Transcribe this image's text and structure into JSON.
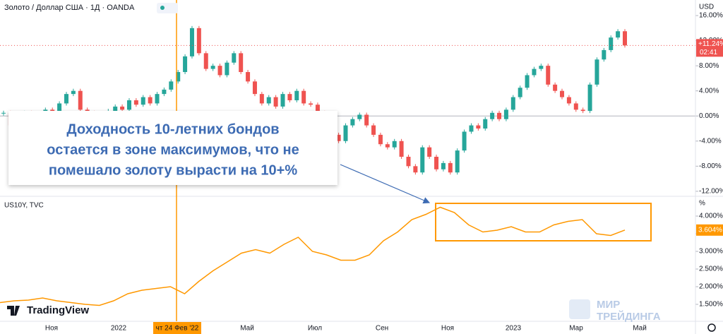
{
  "header": {
    "symbol": "Золото / Доллар США · 1Д · OANDA"
  },
  "annotation": {
    "lines": [
      "Доходность 10-летних бондов",
      "остается в зоне максимумов, что не",
      "помешало золоту вырасти на 10+%"
    ]
  },
  "chart_data": [
    {
      "type": "candlestick",
      "currency": "USD",
      "up_color": "#26a69a",
      "down_color": "#ef5350",
      "values": [
        0.5,
        -1.5,
        -0.5,
        0.5,
        -0.8,
        0.3,
        1.0,
        0.2,
        2.0,
        3.5,
        4.0,
        1.0,
        0.5,
        -0.2,
        0.3,
        0.8,
        1.5,
        1.0,
        2.5,
        1.8,
        3.0,
        2.0,
        3.5,
        4.2,
        5.5,
        7.0,
        9.5,
        14.0,
        10.0,
        7.5,
        8.0,
        6.5,
        8.5,
        10.0,
        7.0,
        5.5,
        3.5,
        2.0,
        3.0,
        1.5,
        3.5,
        2.5,
        4.0,
        2.0,
        1.8,
        0.5,
        -1.0,
        -3.0,
        -4.0,
        -1.5,
        -0.5,
        0.2,
        -1.5,
        -3.0,
        -4.5,
        -5.0,
        -4.0,
        -6.5,
        -8.0,
        -9.0,
        -5.0,
        -6.5,
        -8.5,
        -7.5,
        -9.0,
        -5.5,
        -2.5,
        -1.5,
        -2.0,
        -0.5,
        0.5,
        -0.5,
        1.0,
        3.0,
        4.5,
        6.5,
        7.5,
        8.0,
        5.0,
        4.0,
        3.0,
        2.0,
        1.0,
        0.8,
        5.0,
        9.0,
        10.5,
        12.5,
        13.5,
        11.24
      ],
      "ylim": [
        -12.8,
        18.48
      ],
      "yticks": [
        {
          "value": 16,
          "label": "16.00%"
        },
        {
          "value": 12,
          "label": "12.00%"
        },
        {
          "value": 8,
          "label": "8.00%"
        },
        {
          "value": 4,
          "label": "4.00%"
        },
        {
          "value": 0,
          "label": "0.00%"
        },
        {
          "value": -4,
          "label": "-4.00%"
        },
        {
          "value": -8,
          "label": "-8.00%"
        },
        {
          "value": -12,
          "label": "-12.00%"
        }
      ],
      "last_label": "+11.24%",
      "countdown": "02:41"
    },
    {
      "type": "line",
      "title": "US10Y, TVC",
      "color": "#ff9800",
      "axis_unit": "%",
      "values": [
        1.55,
        1.6,
        1.62,
        1.68,
        1.6,
        1.55,
        1.5,
        1.47,
        1.6,
        1.8,
        1.9,
        1.95,
        2.0,
        1.8,
        2.15,
        2.45,
        2.7,
        2.95,
        3.05,
        2.95,
        3.2,
        3.4,
        3.0,
        2.9,
        2.75,
        2.75,
        2.9,
        3.3,
        3.55,
        3.9,
        4.05,
        4.25,
        4.1,
        3.75,
        3.55,
        3.6,
        3.7,
        3.55,
        3.55,
        3.75,
        3.85,
        3.9,
        3.5,
        3.45,
        3.604
      ],
      "ylim": [
        1.02,
        4.56
      ],
      "yticks": [
        {
          "value": 4,
          "label": "4.000%"
        },
        {
          "value": 3.5,
          "label": "3.500%"
        },
        {
          "value": 3,
          "label": "3.000%"
        },
        {
          "value": 2.5,
          "label": "2.500%"
        },
        {
          "value": 2,
          "label": "2.000%"
        },
        {
          "value": 1.5,
          "label": "1.500%"
        }
      ],
      "last_label": "3.604%"
    }
  ],
  "time_axis": {
    "labels": [
      "Ноя",
      "2022",
      "Май",
      "Июл",
      "Сен",
      "Ноя",
      "2023",
      "Мар",
      "Май"
    ],
    "marker": "чт 24 Фев '22"
  },
  "branding": {
    "logo": "TradingView",
    "watermark": [
      "МИР",
      "ТРЕЙДИНГА"
    ]
  }
}
